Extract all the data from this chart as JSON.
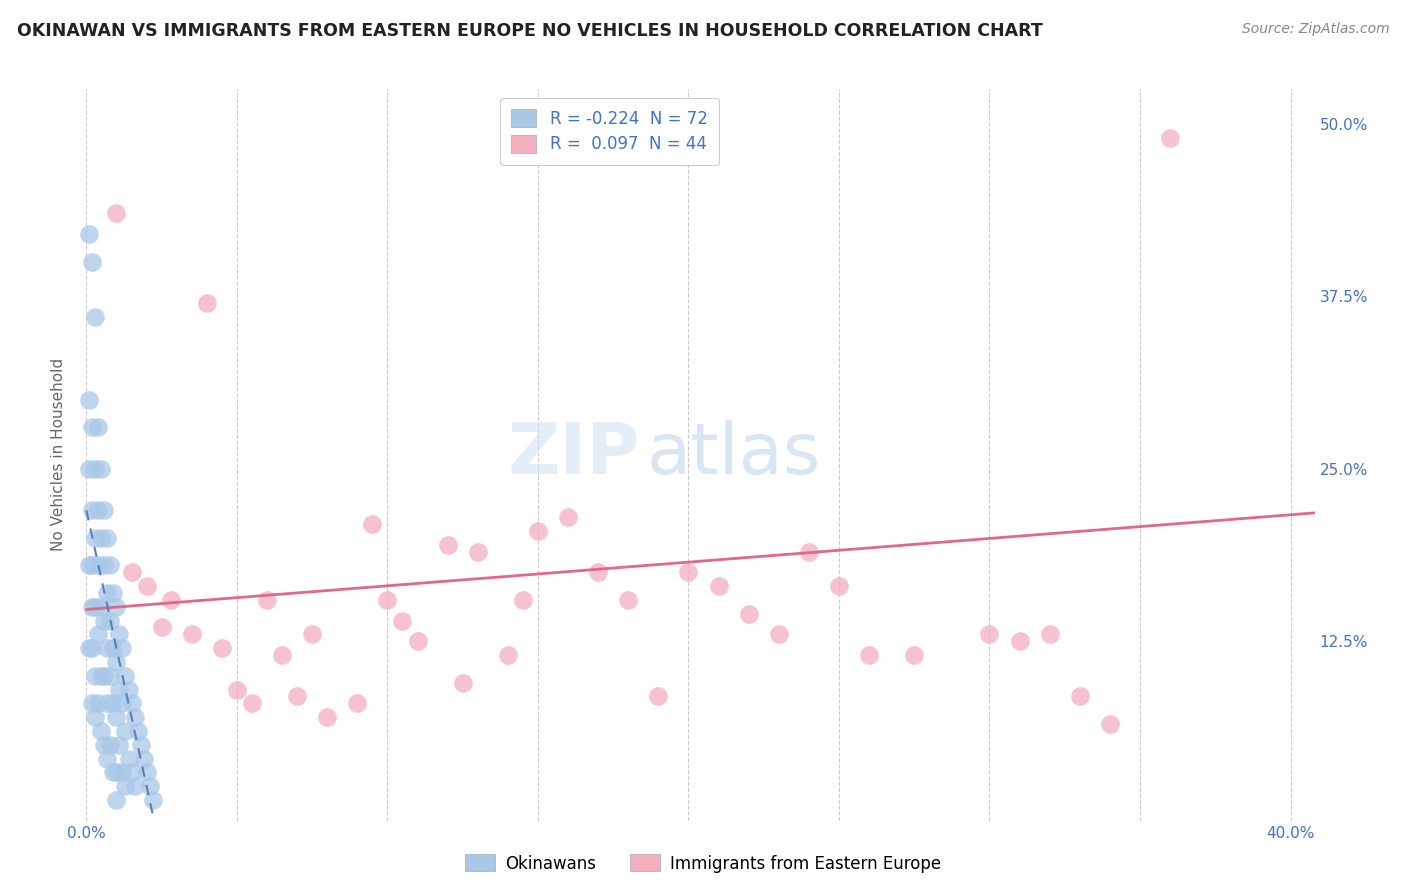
{
  "title": "OKINAWAN VS IMMIGRANTS FROM EASTERN EUROPE NO VEHICLES IN HOUSEHOLD CORRELATION CHART",
  "source": "Source: ZipAtlas.com",
  "ylabel": "No Vehicles in Household",
  "xlim": [
    -0.003,
    0.408
  ],
  "ylim": [
    -0.005,
    0.525
  ],
  "xtick_positions": [
    0.0,
    0.05,
    0.1,
    0.15,
    0.2,
    0.25,
    0.3,
    0.35,
    0.4
  ],
  "xticklabels": [
    "0.0%",
    "",
    "",
    "",
    "",
    "",
    "",
    "",
    "40.0%"
  ],
  "ytick_positions": [
    0.0,
    0.125,
    0.25,
    0.375,
    0.5
  ],
  "yticklabels": [
    "",
    "12.5%",
    "25.0%",
    "37.5%",
    "50.0%"
  ],
  "legend_R1": "-0.224",
  "legend_N1": "72",
  "legend_R2": "0.097",
  "legend_N2": "44",
  "okinawan_color": "#a8c8e8",
  "eastern_europe_color": "#f5aec0",
  "okinawan_line_color": "#5580bb",
  "eastern_europe_line_color": "#e06888",
  "axis_label_color": "#4472c4",
  "title_color": "#222222",
  "source_color": "#888888",
  "ylabel_color": "#666666",
  "grid_color": "#cccccc",
  "ok_x": [
    0.001,
    0.001,
    0.001,
    0.001,
    0.001,
    0.002,
    0.002,
    0.002,
    0.002,
    0.002,
    0.002,
    0.002,
    0.003,
    0.003,
    0.003,
    0.003,
    0.003,
    0.003,
    0.004,
    0.004,
    0.004,
    0.004,
    0.004,
    0.005,
    0.005,
    0.005,
    0.005,
    0.005,
    0.006,
    0.006,
    0.006,
    0.006,
    0.006,
    0.007,
    0.007,
    0.007,
    0.007,
    0.007,
    0.008,
    0.008,
    0.008,
    0.008,
    0.009,
    0.009,
    0.009,
    0.009,
    0.01,
    0.01,
    0.01,
    0.01,
    0.01,
    0.011,
    0.011,
    0.011,
    0.012,
    0.012,
    0.012,
    0.013,
    0.013,
    0.013,
    0.014,
    0.014,
    0.015,
    0.015,
    0.016,
    0.016,
    0.017,
    0.018,
    0.019,
    0.02,
    0.021,
    0.022
  ],
  "ok_y": [
    0.42,
    0.3,
    0.25,
    0.18,
    0.12,
    0.4,
    0.28,
    0.22,
    0.18,
    0.15,
    0.12,
    0.08,
    0.36,
    0.25,
    0.2,
    0.15,
    0.1,
    0.07,
    0.28,
    0.22,
    0.18,
    0.13,
    0.08,
    0.25,
    0.2,
    0.15,
    0.1,
    0.06,
    0.22,
    0.18,
    0.14,
    0.1,
    0.05,
    0.2,
    0.16,
    0.12,
    0.08,
    0.04,
    0.18,
    0.14,
    0.1,
    0.05,
    0.16,
    0.12,
    0.08,
    0.03,
    0.15,
    0.11,
    0.07,
    0.03,
    0.01,
    0.13,
    0.09,
    0.05,
    0.12,
    0.08,
    0.03,
    0.1,
    0.06,
    0.02,
    0.09,
    0.04,
    0.08,
    0.03,
    0.07,
    0.02,
    0.06,
    0.05,
    0.04,
    0.03,
    0.02,
    0.01
  ],
  "ee_x": [
    0.01,
    0.015,
    0.02,
    0.025,
    0.028,
    0.035,
    0.04,
    0.045,
    0.05,
    0.055,
    0.06,
    0.065,
    0.07,
    0.075,
    0.08,
    0.09,
    0.095,
    0.1,
    0.105,
    0.11,
    0.12,
    0.125,
    0.13,
    0.14,
    0.145,
    0.15,
    0.16,
    0.17,
    0.18,
    0.19,
    0.2,
    0.21,
    0.22,
    0.23,
    0.24,
    0.25,
    0.26,
    0.275,
    0.3,
    0.31,
    0.32,
    0.33,
    0.34,
    0.36
  ],
  "ee_y": [
    0.435,
    0.175,
    0.165,
    0.135,
    0.155,
    0.13,
    0.37,
    0.12,
    0.09,
    0.08,
    0.155,
    0.115,
    0.085,
    0.13,
    0.07,
    0.08,
    0.21,
    0.155,
    0.14,
    0.125,
    0.195,
    0.095,
    0.19,
    0.115,
    0.155,
    0.205,
    0.215,
    0.175,
    0.155,
    0.085,
    0.175,
    0.165,
    0.145,
    0.13,
    0.19,
    0.165,
    0.115,
    0.115,
    0.13,
    0.125,
    0.13,
    0.085,
    0.065,
    0.49
  ],
  "ee_line_x0": 0.0,
  "ee_line_x1": 0.408,
  "ee_line_y0": 0.148,
  "ee_line_y1": 0.218,
  "ok_line_x0": 0.0,
  "ok_line_x1": 0.022,
  "ok_line_y0": 0.22,
  "ok_line_y1": 0.0
}
